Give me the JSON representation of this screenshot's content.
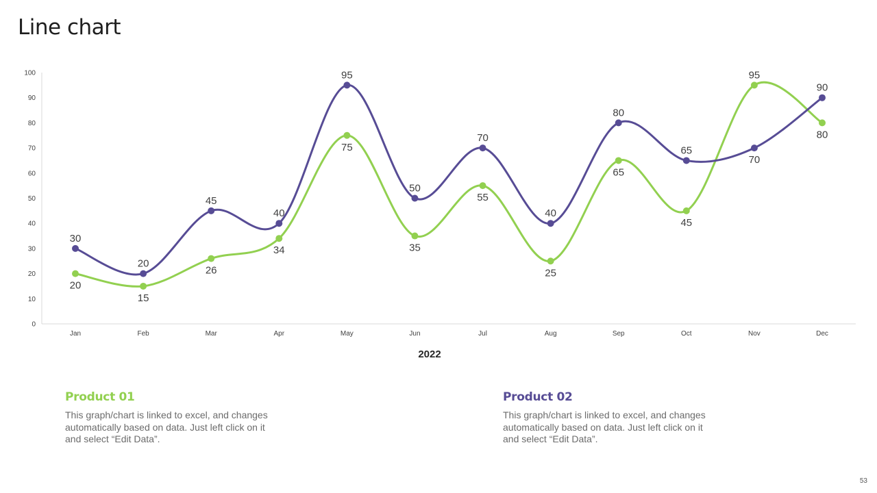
{
  "title": "Line chart",
  "colors": {
    "product01": "#92D050",
    "product02": "#574C95",
    "axis": "#D9D9D9"
  },
  "chart_data": {
    "type": "line",
    "categories": [
      "Jan",
      "Feb",
      "Mar",
      "Apr",
      "May",
      "Jun",
      "Jul",
      "Aug",
      "Sep",
      "Oct",
      "Nov",
      "Dec"
    ],
    "series": [
      {
        "name": "Product 01",
        "color": "#92D050",
        "values": [
          20,
          15,
          26,
          34,
          75,
          35,
          55,
          25,
          65,
          45,
          95,
          80
        ]
      },
      {
        "name": "Product 02",
        "color": "#574C95",
        "values": [
          30,
          20,
          45,
          40,
          95,
          50,
          70,
          40,
          80,
          65,
          70,
          90
        ]
      }
    ],
    "yticks": [
      0,
      10,
      20,
      30,
      40,
      50,
      60,
      70,
      80,
      90,
      100
    ],
    "ylim": [
      0,
      100
    ],
    "xlabel": "2022",
    "ylabel": "",
    "smooth": true,
    "grid": false
  },
  "cards": [
    {
      "title": "Product 01",
      "text": "This graph/chart is linked to excel, and changes automatically based on data. Just left click on it and select “Edit Data”."
    },
    {
      "title": "Product 02",
      "text": "This graph/chart is linked to excel, and changes automatically based on data. Just left click on it and select “Edit Data”."
    }
  ],
  "page_number": "53"
}
